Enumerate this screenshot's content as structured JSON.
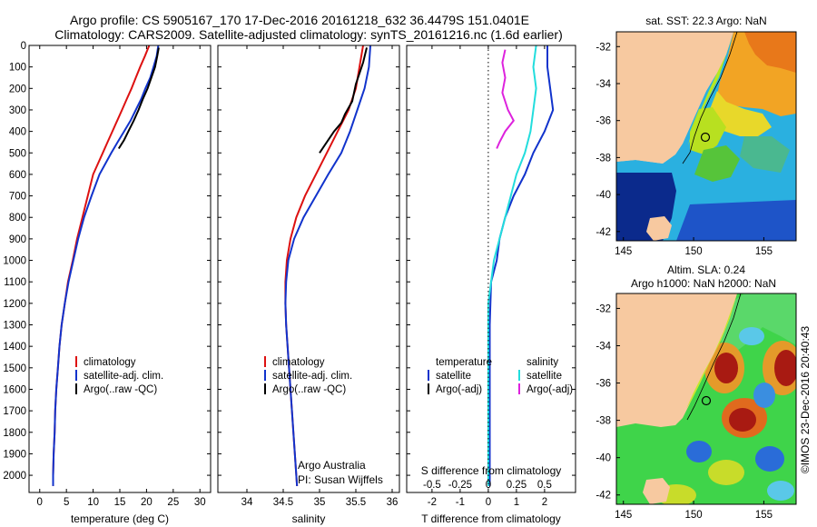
{
  "titles": {
    "line1": "Argo profile: CS 5905167_170 17-Dec-2016 20161218_632 36.4479S 151.0401E",
    "line2": "Climatology: CARS2009. Satellite-adjusted climatology: synTS_20161216.nc (1.6d earlier)"
  },
  "chart_data": [
    {
      "type": "line",
      "id": "temperature",
      "xlabel": "temperature (deg C)",
      "ylabel": "",
      "xlim": [
        -2,
        32
      ],
      "ylim": [
        0,
        2080
      ],
      "y_reversed": true,
      "x_ticks": [
        0,
        5,
        10,
        15,
        20,
        25,
        30
      ],
      "y_ticks": [
        0,
        100,
        200,
        300,
        400,
        500,
        600,
        700,
        800,
        900,
        1000,
        1100,
        1200,
        1300,
        1400,
        1500,
        1600,
        1700,
        1800,
        1900,
        2000
      ],
      "legend": [
        "climatology",
        "satellite-adj. clim.",
        "Argo(..raw -QC)"
      ],
      "legend_position": "lower-center",
      "series": [
        {
          "name": "climatology",
          "color": "#dd1111",
          "points": [
            [
              20.5,
              0
            ],
            [
              19.7,
              50
            ],
            [
              18.8,
              100
            ],
            [
              18.0,
              150
            ],
            [
              17.2,
              200
            ],
            [
              16.3,
              250
            ],
            [
              15.4,
              300
            ],
            [
              14.5,
              350
            ],
            [
              13.6,
              400
            ],
            [
              12.7,
              450
            ],
            [
              11.8,
              500
            ],
            [
              10.9,
              550
            ],
            [
              10.0,
              600
            ],
            [
              9.0,
              700
            ],
            [
              8.0,
              800
            ],
            [
              7.0,
              900
            ],
            [
              6.2,
              1000
            ],
            [
              5.3,
              1100
            ],
            [
              4.7,
              1200
            ],
            [
              4.1,
              1300
            ],
            [
              3.7,
              1400
            ],
            [
              3.4,
              1500
            ],
            [
              3.1,
              1600
            ],
            [
              2.9,
              1700
            ],
            [
              2.8,
              1800
            ],
            [
              2.6,
              1900
            ],
            [
              2.5,
              2000
            ],
            [
              2.5,
              2050
            ]
          ]
        },
        {
          "name": "satellite-adj. clim.",
          "color": "#1133cc",
          "points": [
            [
              22.2,
              0
            ],
            [
              21.9,
              50
            ],
            [
              21.3,
              100
            ],
            [
              20.7,
              150
            ],
            [
              19.8,
              200
            ],
            [
              19.0,
              250
            ],
            [
              18.0,
              300
            ],
            [
              17.0,
              350
            ],
            [
              15.8,
              400
            ],
            [
              14.6,
              450
            ],
            [
              13.4,
              500
            ],
            [
              12.3,
              550
            ],
            [
              11.2,
              600
            ],
            [
              9.7,
              700
            ],
            [
              8.3,
              800
            ],
            [
              7.2,
              900
            ],
            [
              6.3,
              1000
            ],
            [
              5.4,
              1100
            ],
            [
              4.7,
              1200
            ],
            [
              4.1,
              1300
            ],
            [
              3.7,
              1400
            ],
            [
              3.4,
              1500
            ],
            [
              3.1,
              1600
            ],
            [
              2.9,
              1700
            ],
            [
              2.8,
              1800
            ],
            [
              2.6,
              1900
            ],
            [
              2.5,
              2000
            ],
            [
              2.5,
              2050
            ]
          ]
        },
        {
          "name": "Argo(..raw -QC)",
          "color": "#000000",
          "points": [
            [
              22.3,
              10
            ],
            [
              22.0,
              50
            ],
            [
              21.6,
              100
            ],
            [
              20.9,
              150
            ],
            [
              20.2,
              200
            ],
            [
              19.3,
              250
            ],
            [
              18.5,
              300
            ],
            [
              17.6,
              350
            ],
            [
              16.6,
              400
            ],
            [
              15.8,
              440
            ],
            [
              14.8,
              480
            ]
          ]
        }
      ]
    },
    {
      "type": "line",
      "id": "salinity",
      "xlabel": "salinity",
      "ylabel": "",
      "xlim": [
        33.6,
        36.1
      ],
      "ylim": [
        0,
        2080
      ],
      "y_reversed": true,
      "x_ticks": [
        34,
        34.5,
        35,
        35.5,
        36
      ],
      "legend": [
        "climatology",
        "satellite-adj. clim.",
        "Argo(..raw -QC)"
      ],
      "legend_position": "lower-center",
      "annotation": [
        "Argo Australia",
        "PI: Susan Wijffels"
      ],
      "series": [
        {
          "name": "climatology",
          "color": "#dd1111",
          "points": [
            [
              35.6,
              0
            ],
            [
              35.55,
              100
            ],
            [
              35.5,
              200
            ],
            [
              35.4,
              300
            ],
            [
              35.25,
              400
            ],
            [
              35.1,
              500
            ],
            [
              34.95,
              600
            ],
            [
              34.8,
              700
            ],
            [
              34.68,
              800
            ],
            [
              34.6,
              900
            ],
            [
              34.55,
              1000
            ],
            [
              34.53,
              1100
            ],
            [
              34.53,
              1200
            ],
            [
              34.54,
              1300
            ],
            [
              34.56,
              1400
            ],
            [
              34.58,
              1500
            ],
            [
              34.6,
              1600
            ],
            [
              34.62,
              1700
            ],
            [
              34.64,
              1800
            ],
            [
              34.66,
              1900
            ],
            [
              34.68,
              2000
            ],
            [
              34.69,
              2050
            ]
          ]
        },
        {
          "name": "satellite-adj. clim.",
          "color": "#1133cc",
          "points": [
            [
              35.7,
              0
            ],
            [
              35.68,
              100
            ],
            [
              35.62,
              200
            ],
            [
              35.52,
              300
            ],
            [
              35.42,
              400
            ],
            [
              35.3,
              500
            ],
            [
              35.12,
              600
            ],
            [
              34.95,
              700
            ],
            [
              34.78,
              800
            ],
            [
              34.65,
              900
            ],
            [
              34.57,
              1000
            ],
            [
              34.54,
              1100
            ],
            [
              34.53,
              1200
            ],
            [
              34.54,
              1300
            ],
            [
              34.56,
              1400
            ],
            [
              34.58,
              1500
            ],
            [
              34.6,
              1600
            ],
            [
              34.62,
              1700
            ],
            [
              34.64,
              1800
            ],
            [
              34.66,
              1900
            ],
            [
              34.68,
              2000
            ],
            [
              34.69,
              2050
            ]
          ]
        },
        {
          "name": "Argo(..raw -QC)",
          "color": "#000000",
          "points": [
            [
              35.65,
              10
            ],
            [
              35.6,
              80
            ],
            [
              35.5,
              180
            ],
            [
              35.45,
              260
            ],
            [
              35.35,
              320
            ],
            [
              35.3,
              360
            ],
            [
              35.2,
              400
            ],
            [
              35.1,
              450
            ],
            [
              35.0,
              500
            ]
          ]
        }
      ]
    },
    {
      "type": "line",
      "id": "difference",
      "xlabel": "T difference from climatology",
      "top_label": "S difference from climatology",
      "ylabel": "",
      "xlim": [
        -2.9,
        3.1
      ],
      "ylim": [
        0,
        2080
      ],
      "y_reversed": true,
      "x_ticks": [
        -2,
        -1,
        0,
        1,
        2
      ],
      "x_ticks_top_labels": [
        "-0.5",
        "-0.25",
        "0",
        "0.25",
        "0.5"
      ],
      "legend": [
        "temperature",
        "satellite",
        "Argo(-adj)",
        "salinity",
        "satellite",
        "Argo(-adj)"
      ],
      "legend_position": "lower-center",
      "series": [
        {
          "name": "temperature satellite",
          "color": "#1133cc",
          "points": [
            [
              2.1,
              0
            ],
            [
              2.1,
              100
            ],
            [
              2.2,
              200
            ],
            [
              2.3,
              300
            ],
            [
              2.0,
              400
            ],
            [
              1.6,
              500
            ],
            [
              1.3,
              600
            ],
            [
              0.9,
              700
            ],
            [
              0.6,
              800
            ],
            [
              0.4,
              900
            ],
            [
              0.3,
              1000
            ],
            [
              0.1,
              1100
            ],
            [
              0.05,
              1300
            ],
            [
              0.05,
              1500
            ],
            [
              0.05,
              1800
            ],
            [
              0.05,
              2050
            ]
          ]
        },
        {
          "name": "salinity satellite",
          "color": "#22dddd",
          "points": [
            [
              1.7,
              0
            ],
            [
              1.6,
              100
            ],
            [
              1.7,
              200
            ],
            [
              1.6,
              300
            ],
            [
              1.5,
              400
            ],
            [
              1.3,
              500
            ],
            [
              1.0,
              600
            ],
            [
              0.8,
              700
            ],
            [
              0.6,
              800
            ],
            [
              0.4,
              900
            ],
            [
              0.2,
              1000
            ],
            [
              0.0,
              1200
            ],
            [
              0.0,
              1500
            ],
            [
              0.0,
              1800
            ],
            [
              0.0,
              2050
            ]
          ]
        },
        {
          "name": "salinity Argo(-adj)",
          "color": "#dd22dd",
          "points": [
            [
              0.6,
              20
            ],
            [
              0.5,
              80
            ],
            [
              0.6,
              150
            ],
            [
              0.5,
              220
            ],
            [
              0.7,
              300
            ],
            [
              0.9,
              350
            ],
            [
              0.6,
              400
            ],
            [
              0.4,
              450
            ],
            [
              0.3,
              480
            ]
          ]
        },
        {
          "name": "zero line",
          "color": "#000000",
          "dashed": true,
          "points": [
            [
              0,
              0
            ],
            [
              0,
              2080
            ]
          ]
        }
      ]
    }
  ],
  "maps": [
    {
      "id": "sst",
      "title": "sat. SST: 22.3 Argo: NaN",
      "x_ticks": [
        145,
        150,
        155
      ],
      "y_ticks": [
        "-32",
        "-34",
        "-36",
        "-38",
        "-40",
        "-42"
      ]
    },
    {
      "id": "sla",
      "title_line1": "Altim. SLA: 0.24",
      "title_line2": "Argo h1000: NaN h2000: NaN",
      "x_ticks": [
        145,
        150,
        155
      ],
      "y_ticks": [
        "-32",
        "-34",
        "-36",
        "-38",
        "-40",
        "-42"
      ]
    }
  ],
  "credit": "©IMOS 23-Dec-2016 20:40:43",
  "colors": {
    "climatology": "#dd1111",
    "satellite": "#1133cc",
    "argo": "#000000",
    "salinity_satellite": "#22dddd",
    "salinity_argo": "#dd22dd",
    "land": "#f7c9a0"
  }
}
